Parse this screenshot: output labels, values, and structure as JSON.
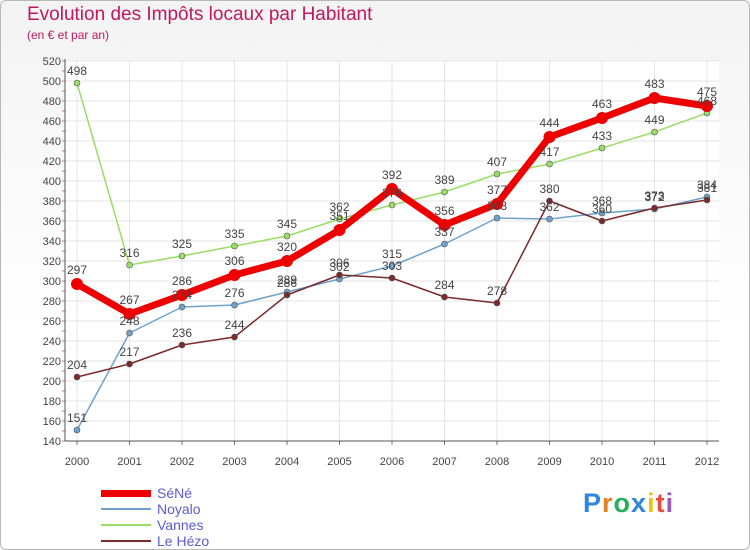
{
  "header": {
    "title": "Evolution des Impôts locaux par Habitant",
    "subtitle": "(en € et par an)"
  },
  "logo": {
    "text": "Proxiti",
    "colors": [
      "#2e86de",
      "#e67e22",
      "#27ae60",
      "#2e86de",
      "#f1c40f",
      "#e74c3c",
      "#9b59b6"
    ]
  },
  "chart_data": {
    "type": "line",
    "title": "Evolution des Impôts locaux par Habitant",
    "subtitle": "(en € et par an)",
    "xlabel": "",
    "ylabel": "",
    "x": [
      "2000",
      "2001",
      "2002",
      "2003",
      "2004",
      "2005",
      "2006",
      "2007",
      "2008",
      "2009",
      "2010",
      "2011",
      "2012"
    ],
    "ylim": [
      140,
      520
    ],
    "yticks": [
      140,
      160,
      180,
      200,
      220,
      240,
      260,
      280,
      300,
      320,
      340,
      360,
      380,
      400,
      420,
      440,
      460,
      480,
      500,
      520
    ],
    "grid": true,
    "legend": "bottom-left",
    "series": [
      {
        "name": "SéNé",
        "color": "#ee0000",
        "values": [
          297,
          267,
          286,
          306,
          320,
          351,
          392,
          356,
          377,
          444,
          463,
          483,
          475
        ]
      },
      {
        "name": "Noyalo",
        "color": "#6ea2cc",
        "values": [
          151,
          248,
          274,
          276,
          289,
          302,
          315,
          337,
          363,
          362,
          368,
          372,
          384
        ]
      },
      {
        "name": "Vannes",
        "color": "#99dd66",
        "values": [
          498,
          316,
          325,
          335,
          345,
          362,
          376,
          389,
          407,
          417,
          433,
          449,
          468
        ]
      },
      {
        "name": "Le Hézo",
        "color": "#7a2a2a",
        "values": [
          204,
          217,
          236,
          244,
          286,
          306,
          303,
          284,
          278,
          380,
          360,
          373,
          381
        ]
      }
    ]
  }
}
